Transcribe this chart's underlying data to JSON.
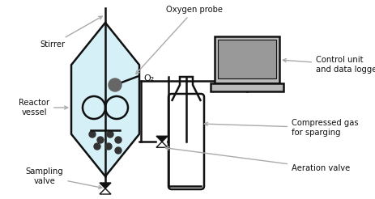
{
  "background_color": "#ffffff",
  "fig_width": 4.64,
  "fig_height": 2.46,
  "labels": {
    "oxygen_probe": "Oxygen probe",
    "stirrer": "Stirrer",
    "o2": "O₂",
    "control_unit": "Control unit\nand data logger",
    "reactor_vessel": "Reactor\nvessel",
    "compressed_gas": "Compressed gas\nfor sparging",
    "sampling_valve": "Sampling\nvalve",
    "aeration_valve": "Aeration valve"
  },
  "arrow_color": "#aaaaaa",
  "vessel_fill": "#d6f0f8",
  "line_color": "#111111",
  "text_color": "#111111"
}
